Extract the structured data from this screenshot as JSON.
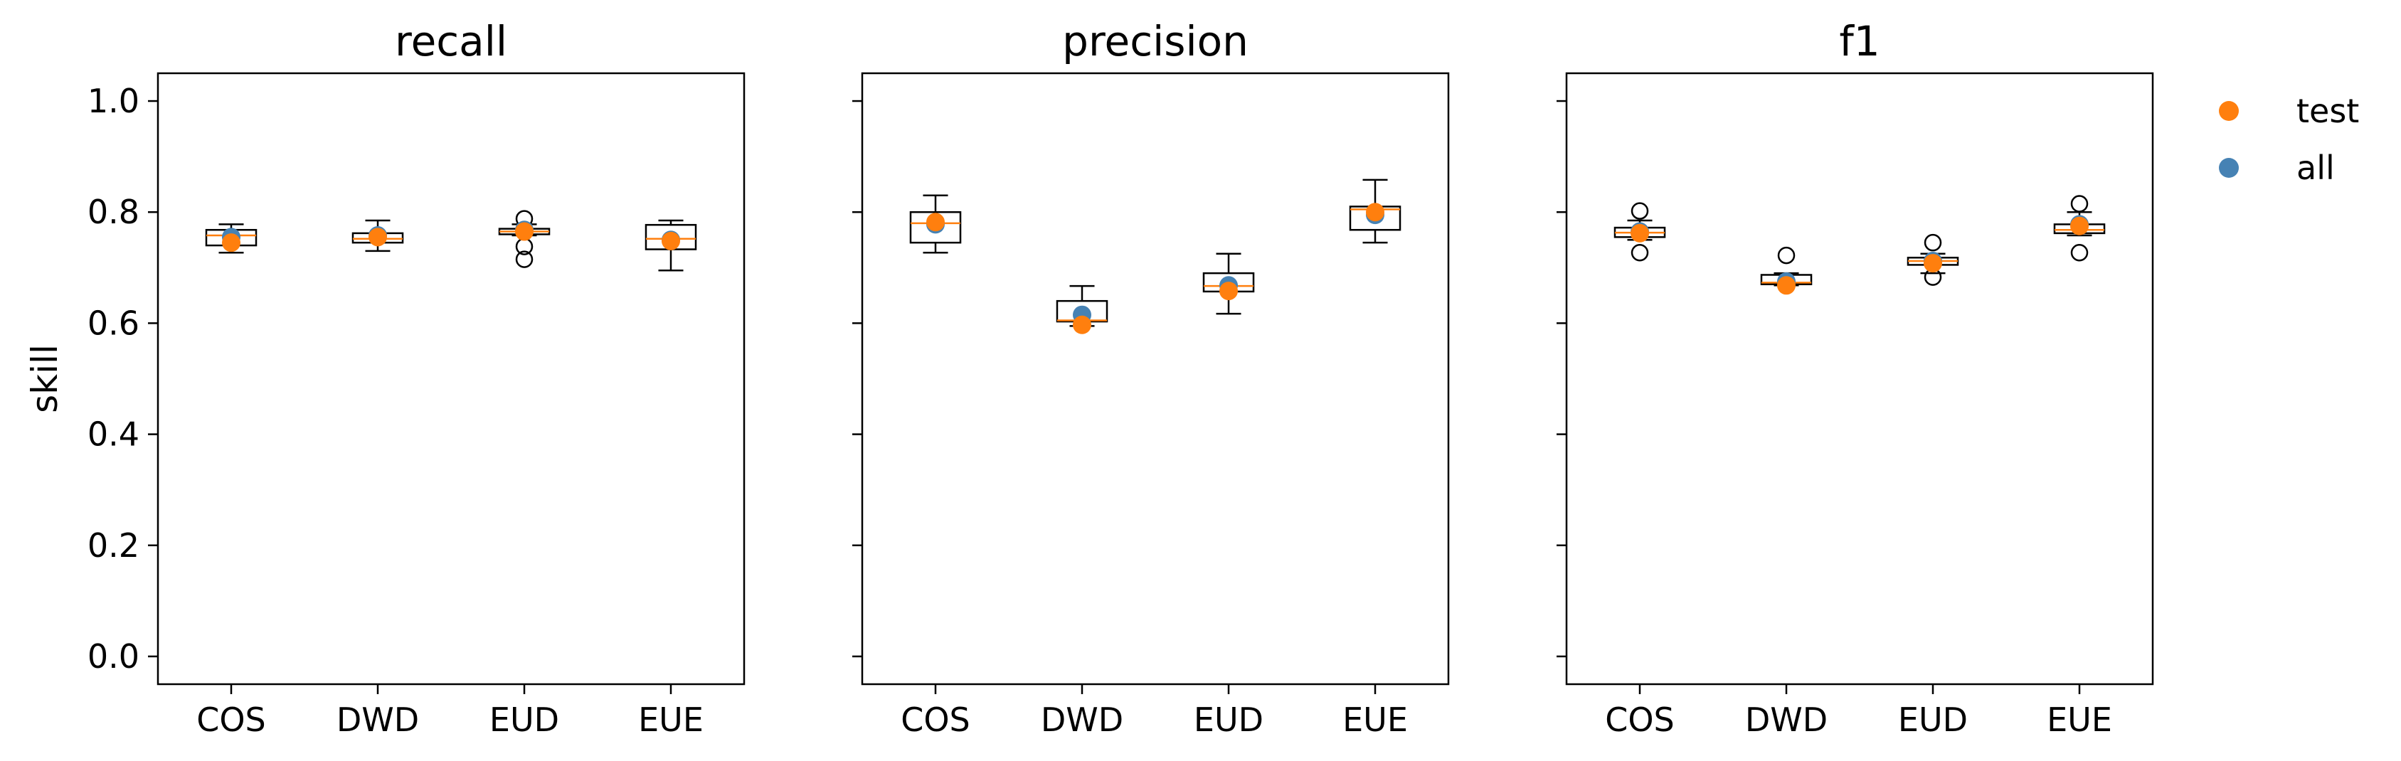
{
  "chart_data": {
    "type": "box",
    "ylabel": "skill",
    "ylim": [
      -0.05,
      1.05
    ],
    "yticks": [
      0.0,
      0.2,
      0.4,
      0.6,
      0.8,
      1.0
    ],
    "ytick_labels": [
      "0.0",
      "0.2",
      "0.4",
      "0.6",
      "0.8",
      "1.0"
    ],
    "categories": [
      "COS",
      "DWD",
      "EUD",
      "EUE"
    ],
    "colors": {
      "box": "#000000",
      "median": "#ff7f0e",
      "test": "#ff7f0e",
      "all": "#4682b4"
    },
    "legend": {
      "position": "outside-right-top",
      "entries": [
        {
          "label": "test",
          "color": "#ff7f0e"
        },
        {
          "label": "all",
          "color": "#4682b4"
        }
      ]
    },
    "panels": [
      {
        "title": "recall",
        "boxes": [
          {
            "category": "COS",
            "whislo": 0.727,
            "q1": 0.74,
            "med": 0.758,
            "q3": 0.768,
            "whishi": 0.778,
            "fliers": []
          },
          {
            "category": "DWD",
            "whislo": 0.73,
            "q1": 0.745,
            "med": 0.752,
            "q3": 0.762,
            "whishi": 0.785,
            "fliers": []
          },
          {
            "category": "EUD",
            "whislo": 0.758,
            "q1": 0.76,
            "med": 0.765,
            "q3": 0.77,
            "whishi": 0.778,
            "fliers": [
              0.788,
              0.738,
              0.715
            ]
          },
          {
            "category": "EUE",
            "whislo": 0.695,
            "q1": 0.733,
            "med": 0.752,
            "q3": 0.777,
            "whishi": 0.785,
            "fliers": []
          }
        ],
        "test": [
          0.745,
          0.755,
          0.765,
          0.748
        ],
        "all": [
          0.755,
          0.758,
          0.768,
          0.75
        ]
      },
      {
        "title": "precision",
        "boxes": [
          {
            "category": "COS",
            "whislo": 0.727,
            "q1": 0.745,
            "med": 0.78,
            "q3": 0.8,
            "whishi": 0.83,
            "fliers": []
          },
          {
            "category": "DWD",
            "whislo": 0.595,
            "q1": 0.603,
            "med": 0.605,
            "q3": 0.64,
            "whishi": 0.667,
            "fliers": []
          },
          {
            "category": "EUD",
            "whislo": 0.617,
            "q1": 0.657,
            "med": 0.667,
            "q3": 0.69,
            "whishi": 0.725,
            "fliers": []
          },
          {
            "category": "EUE",
            "whislo": 0.745,
            "q1": 0.768,
            "med": 0.805,
            "q3": 0.81,
            "whishi": 0.858,
            "fliers": []
          }
        ],
        "test": [
          0.782,
          0.597,
          0.658,
          0.8
        ],
        "all": [
          0.778,
          0.615,
          0.668,
          0.795
        ]
      },
      {
        "title": "f1",
        "boxes": [
          {
            "category": "COS",
            "whislo": 0.75,
            "q1": 0.755,
            "med": 0.763,
            "q3": 0.772,
            "whishi": 0.785,
            "fliers": [
              0.802,
              0.727
            ]
          },
          {
            "category": "DWD",
            "whislo": 0.668,
            "q1": 0.67,
            "med": 0.673,
            "q3": 0.687,
            "whishi": 0.69,
            "fliers": [
              0.722
            ]
          },
          {
            "category": "EUD",
            "whislo": 0.69,
            "q1": 0.705,
            "med": 0.712,
            "q3": 0.718,
            "whishi": 0.725,
            "fliers": [
              0.745,
              0.683
            ]
          },
          {
            "category": "EUE",
            "whislo": 0.758,
            "q1": 0.762,
            "med": 0.768,
            "q3": 0.778,
            "whishi": 0.8,
            "fliers": [
              0.815,
              0.727
            ]
          }
        ],
        "test": [
          0.762,
          0.668,
          0.708,
          0.775
        ],
        "all": [
          0.765,
          0.675,
          0.712,
          0.778
        ]
      }
    ]
  }
}
